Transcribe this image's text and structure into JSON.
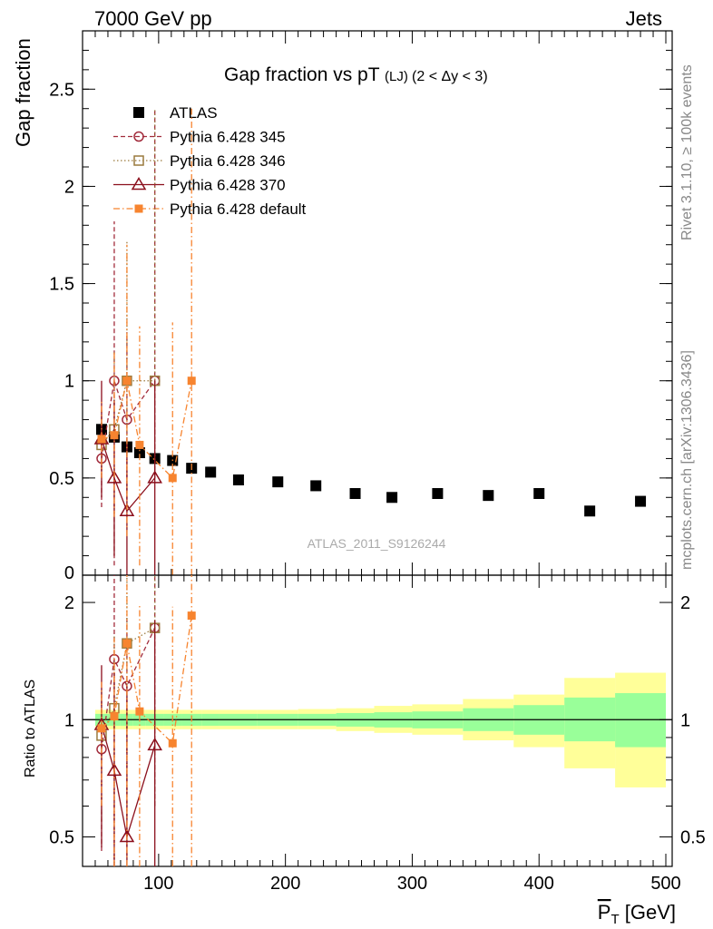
{
  "header": {
    "left": "7000 GeV pp",
    "right": "Jets"
  },
  "side_labels": {
    "rivet": "Rivet 3.1.10, ≥ 100k events",
    "mcplots": "mcplots.cern.ch [arXiv:1306.3436]"
  },
  "chart_data": [
    {
      "type": "scatter",
      "panel": "main",
      "title": "Gap fraction vs pT",
      "title_sub": "(LJ)",
      "title_range": "(2 < Δy < 3)",
      "ylabel": "Gap fraction",
      "watermark": "ATLAS_2011_S9126244",
      "xlim": [
        40,
        505
      ],
      "ylim": [
        0,
        2.8
      ],
      "yticks": [
        0.5,
        1,
        1.5,
        2,
        2.5
      ],
      "ytick_labels": [
        "0.5",
        "1",
        "1.5",
        "2",
        "2.5"
      ],
      "legend": [
        {
          "key": "atlas",
          "label": "ATLAS"
        },
        {
          "key": "p345",
          "label": "Pythia 6.428 345"
        },
        {
          "key": "p346",
          "label": "Pythia 6.428 346"
        },
        {
          "key": "p370",
          "label": "Pythia 6.428 370"
        },
        {
          "key": "pdef",
          "label": "Pythia 6.428 default"
        }
      ],
      "series": [
        {
          "key": "atlas",
          "name": "ATLAS",
          "color": "#000000",
          "marker": "square",
          "line": "none",
          "x": [
            55,
            65,
            75,
            85,
            97,
            111,
            126,
            141,
            163,
            194,
            224,
            255,
            284,
            320,
            360,
            400,
            440,
            480
          ],
          "y": [
            0.75,
            0.71,
            0.66,
            0.63,
            0.6,
            0.59,
            0.55,
            0.53,
            0.49,
            0.48,
            0.46,
            0.42,
            0.4,
            0.42,
            0.41,
            0.42,
            0.33,
            0.38
          ]
        },
        {
          "key": "p345",
          "name": "Pythia 6.428 345",
          "color": "#a22c3c",
          "marker": "circle",
          "line": "dashed",
          "x": [
            55,
            65,
            75,
            97
          ],
          "y": [
            0.6,
            1.0,
            0.8,
            1.0
          ],
          "ylo": [
            0.35,
            0.05,
            0.35,
            0.5
          ],
          "yhi": [
            0.85,
            1.82,
            1.25,
            2.4
          ]
        },
        {
          "key": "p346",
          "name": "Pythia 6.428 346",
          "color": "#9a7a3e",
          "marker": "square-open",
          "line": "dotted",
          "x": [
            55,
            65,
            75,
            97
          ],
          "y": [
            0.67,
            0.75,
            1.0,
            1.0
          ],
          "ylo": [
            0.5,
            0.3,
            0.4,
            0.5
          ],
          "yhi": [
            0.85,
            1.15,
            1.72,
            2.4
          ]
        },
        {
          "key": "p370",
          "name": "Pythia 6.428 370",
          "color": "#8b0f1c",
          "marker": "triangle",
          "line": "solid",
          "x": [
            55,
            65,
            75,
            97
          ],
          "y": [
            0.7,
            0.5,
            0.33,
            0.5
          ],
          "ylo": [
            0.4,
            0.1,
            0.0,
            0.0
          ],
          "yhi": [
            1.0,
            0.9,
            0.7,
            1.0
          ]
        },
        {
          "key": "pdef",
          "name": "Pythia 6.428 default",
          "color": "#f7842f",
          "marker": "square-small",
          "line": "dashdot",
          "x": [
            55,
            65,
            75,
            85,
            111,
            126
          ],
          "y": [
            0.7,
            0.72,
            1.0,
            0.67,
            0.5,
            1.0
          ],
          "ylo": [
            0.5,
            0.3,
            0.2,
            0.05,
            0.0,
            0.0
          ],
          "yhi": [
            0.9,
            1.15,
            1.7,
            1.28,
            1.3,
            2.4
          ]
        }
      ]
    },
    {
      "type": "scatter",
      "panel": "ratio",
      "ylabel": "Ratio to ATLAS",
      "xlabel": "P̅T [GeV]",
      "xlabel_main": "P",
      "xlabel_sub": "T",
      "xlabel_unit": "[GeV]",
      "xlim": [
        40,
        505
      ],
      "ylim": [
        0.42,
        2.35
      ],
      "yscale": "log",
      "yticks": [
        0.5,
        1,
        2
      ],
      "ytick_labels": [
        "0.5",
        "1",
        "2"
      ],
      "xticks": [
        100,
        200,
        300,
        400,
        500
      ],
      "xtick_labels": [
        "100",
        "200",
        "300",
        "400",
        "500"
      ],
      "bands": {
        "edges": [
          50,
          60,
          70,
          80,
          90,
          104,
          118,
          134,
          148,
          178,
          210,
          240,
          270,
          300,
          340,
          380,
          420,
          460,
          500
        ],
        "inner_lo": [
          0.965,
          0.965,
          0.965,
          0.965,
          0.965,
          0.965,
          0.965,
          0.965,
          0.965,
          0.965,
          0.965,
          0.96,
          0.955,
          0.95,
          0.935,
          0.915,
          0.88,
          0.85
        ],
        "inner_hi": [
          1.035,
          1.035,
          1.035,
          1.035,
          1.035,
          1.035,
          1.035,
          1.035,
          1.035,
          1.035,
          1.035,
          1.04,
          1.045,
          1.05,
          1.07,
          1.09,
          1.14,
          1.17
        ],
        "outer_lo": [
          0.945,
          0.945,
          0.945,
          0.945,
          0.945,
          0.945,
          0.945,
          0.945,
          0.945,
          0.945,
          0.945,
          0.935,
          0.925,
          0.915,
          0.885,
          0.85,
          0.75,
          0.67
        ],
        "outer_hi": [
          1.06,
          1.06,
          1.06,
          1.06,
          1.06,
          1.06,
          1.06,
          1.06,
          1.06,
          1.06,
          1.065,
          1.07,
          1.085,
          1.095,
          1.13,
          1.16,
          1.28,
          1.32
        ],
        "inner_color": "#99ff99",
        "outer_color": "#ffff99"
      },
      "series": [
        {
          "key": "p345",
          "color": "#a22c3c",
          "marker": "circle",
          "line": "dashed",
          "x": [
            55,
            65,
            75,
            97
          ],
          "y": [
            0.84,
            1.43,
            1.22,
            1.72
          ],
          "ylo": [
            0.46,
            0.1,
            0.45,
            0.6
          ],
          "yhi": [
            1.18,
            3.0,
            1.85,
            3.0
          ]
        },
        {
          "key": "p346",
          "color": "#9a7a3e",
          "marker": "square-open",
          "line": "dotted",
          "x": [
            55,
            65,
            75,
            97
          ],
          "y": [
            0.91,
            1.07,
            1.57,
            1.72
          ],
          "ylo": [
            0.55,
            0.4,
            0.5,
            0.6
          ],
          "yhi": [
            1.18,
            1.65,
            2.6,
            3.0
          ]
        },
        {
          "key": "p370",
          "color": "#8b0f1c",
          "marker": "triangle",
          "line": "solid",
          "x": [
            55,
            65,
            75,
            97
          ],
          "y": [
            0.97,
            0.74,
            0.5,
            0.86
          ],
          "ylo": [
            0.47,
            0.2,
            0.1,
            0.1
          ],
          "yhi": [
            1.38,
            1.32,
            1.22,
            1.8
          ]
        },
        {
          "key": "pdef",
          "color": "#f7842f",
          "marker": "square-small",
          "line": "dashdot",
          "x": [
            55,
            65,
            75,
            85,
            111,
            126
          ],
          "y": [
            0.95,
            1.02,
            1.57,
            1.05,
            0.87,
            1.85
          ],
          "ylo": [
            0.6,
            0.3,
            0.35,
            0.1,
            0.1,
            0.1
          ],
          "yhi": [
            1.25,
            1.62,
            2.6,
            1.98,
            1.95,
            3.0
          ]
        }
      ]
    }
  ]
}
